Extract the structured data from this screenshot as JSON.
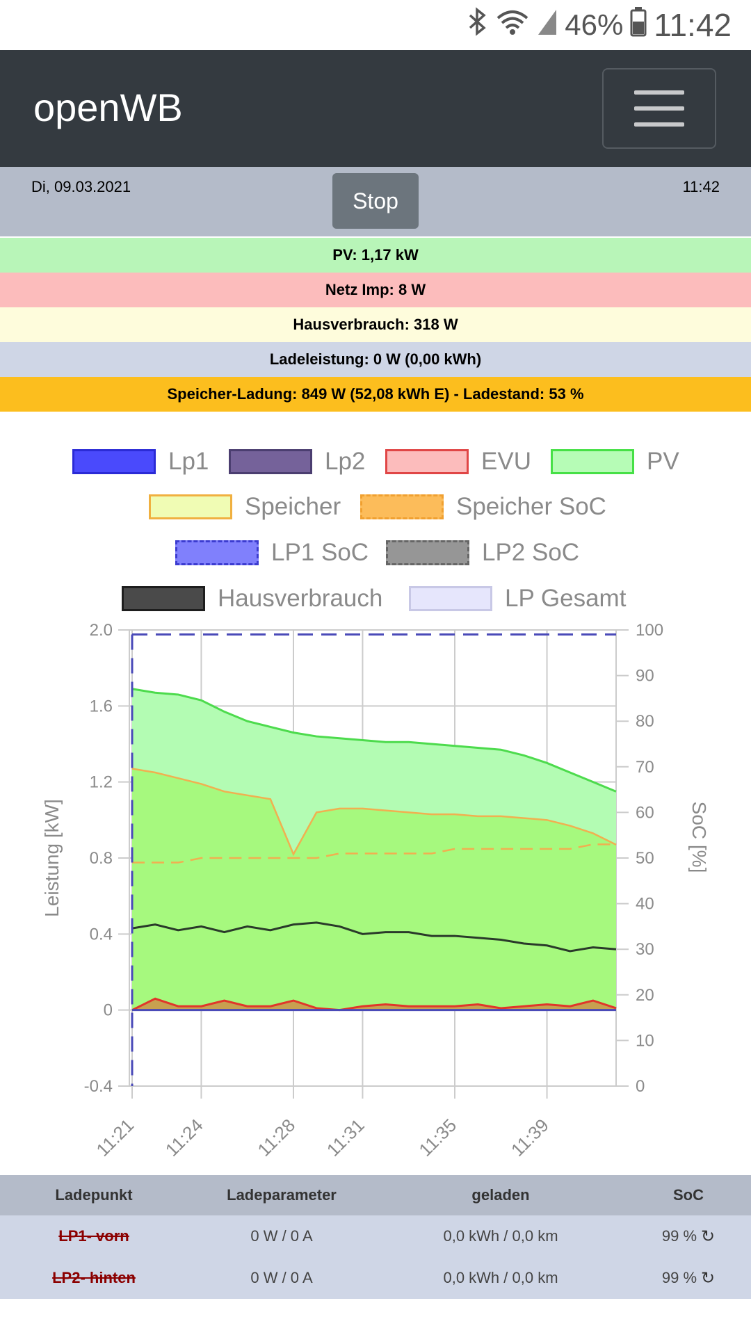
{
  "statusbar": {
    "bluetooth_icon": "bluetooth-icon",
    "wifi_icon": "wifi-icon",
    "signal_icon": "cell-signal-icon",
    "battery_pct": "46%",
    "battery_icon": "battery-icon",
    "clock": "11:42"
  },
  "navbar": {
    "brand": "openWB",
    "menu_icon": "hamburger-menu-icon"
  },
  "datebar": {
    "date": "Di, 09.03.2021",
    "time": "11:42",
    "stop_label": "Stop"
  },
  "info": {
    "pv": "PV: 1,17 kW",
    "netz": "Netz Imp: 8 W",
    "haus": "Hausverbrauch: 318 W",
    "lade": "Ladeleistung: 0 W (0,00 kWh)",
    "speicher": "Speicher-Ladung: 849 W (52,08 kWh E) - Ladestand: 53 %"
  },
  "colors": {
    "pv_row": "#b8f5b8",
    "netz_row": "#fcbcbc",
    "haus_row": "#fefcdc",
    "lade_row": "#cfd6e6",
    "speicher_row": "#fcbe1e",
    "navbar": "#343a40",
    "pv_line": "#4ddb4d",
    "pv_fill": "#b3fcb3",
    "speicher_line": "#f0b050",
    "speicher_fill": "#a6f97e",
    "evu_line": "#e0362a",
    "haus_line": "#2a3a2a",
    "soc_line": "#4a4ab8"
  },
  "legend": [
    {
      "label": "Lp1",
      "fill": "#4a4afc",
      "border": "#2b2bd6",
      "dashed": false
    },
    {
      "label": "Lp2",
      "fill": "#75629a",
      "border": "#4b3e70",
      "dashed": false
    },
    {
      "label": "EVU",
      "fill": "#fcbcbc",
      "border": "#e04646",
      "dashed": false
    },
    {
      "label": "PV",
      "fill": "#b6fcb6",
      "border": "#46e046",
      "dashed": false
    },
    {
      "label": "Speicher",
      "fill": "#f0fcb4",
      "border": "#f0b040",
      "dashed": false
    },
    {
      "label": "Speicher SoC",
      "fill": "#fcbc5a",
      "border": "#f0a030",
      "dashed": true
    },
    {
      "label": "LP1 SoC",
      "fill": "#8080fc",
      "border": "#3c3cd0",
      "dashed": true
    },
    {
      "label": "LP2 SoC",
      "fill": "#969696",
      "border": "#666666",
      "dashed": true
    },
    {
      "label": "Hausverbrauch",
      "fill": "#4a4a4a",
      "border": "#1e1e1e",
      "dashed": false
    },
    {
      "label": "LP Gesamt",
      "fill": "#e6e6fc",
      "border": "#c8c8e6",
      "dashed": false
    }
  ],
  "chart_data": {
    "type": "line",
    "ylabel": "Leistung [kW]",
    "y2label": "SoC [%]",
    "ylim": [
      -0.4,
      2.0
    ],
    "yticks": [
      "2.0",
      "1.6",
      "1.2",
      "0.8",
      "0.4",
      "0",
      "-0.4"
    ],
    "y2lim": [
      0,
      100
    ],
    "y2ticks": [
      "100",
      "90",
      "80",
      "70",
      "60",
      "50",
      "40",
      "30",
      "20",
      "10",
      "0"
    ],
    "xticks": [
      "11:21",
      "11:24",
      "11:28",
      "11:31",
      "11:35",
      "11:39"
    ],
    "grid": true,
    "x_minutes": [
      0,
      1,
      2,
      3,
      4,
      5,
      6,
      7,
      8,
      9,
      10,
      11,
      12,
      13,
      14,
      15,
      16,
      17,
      18,
      19,
      20,
      21
    ],
    "series": [
      {
        "name": "PV",
        "values": [
          1.69,
          1.67,
          1.66,
          1.63,
          1.57,
          1.52,
          1.49,
          1.46,
          1.44,
          1.43,
          1.42,
          1.41,
          1.41,
          1.4,
          1.39,
          1.38,
          1.37,
          1.34,
          1.3,
          1.25,
          1.2,
          1.15
        ]
      },
      {
        "name": "Speicher",
        "values": [
          1.27,
          1.25,
          1.22,
          1.19,
          1.15,
          1.13,
          1.11,
          0.82,
          1.04,
          1.06,
          1.06,
          1.05,
          1.04,
          1.03,
          1.03,
          1.02,
          1.02,
          1.01,
          1.0,
          0.97,
          0.93,
          0.87
        ]
      },
      {
        "name": "Hausverbrauch",
        "values": [
          0.43,
          0.45,
          0.42,
          0.44,
          0.41,
          0.44,
          0.42,
          0.45,
          0.46,
          0.44,
          0.4,
          0.41,
          0.41,
          0.39,
          0.39,
          0.38,
          0.37,
          0.35,
          0.34,
          0.31,
          0.33,
          0.32
        ]
      },
      {
        "name": "EVU",
        "values": [
          0.0,
          0.06,
          0.02,
          0.02,
          0.05,
          0.02,
          0.02,
          0.05,
          0.01,
          0.0,
          0.02,
          0.03,
          0.02,
          0.02,
          0.02,
          0.03,
          0.01,
          0.02,
          0.03,
          0.02,
          0.05,
          0.01
        ]
      },
      {
        "name": "Speicher SoC",
        "values": [
          49,
          49,
          49,
          50,
          50,
          50,
          50,
          50,
          50,
          51,
          51,
          51,
          51,
          51,
          52,
          52,
          52,
          52,
          52,
          52,
          53,
          53
        ]
      },
      {
        "name": "LP1 SoC",
        "values": [
          99,
          99,
          99,
          99,
          99,
          99,
          99,
          99,
          99,
          99,
          99,
          99,
          99,
          99,
          99,
          99,
          99,
          99,
          99,
          99,
          99,
          99
        ]
      },
      {
        "name": "Lp1",
        "values": [
          0,
          0,
          0,
          0,
          0,
          0,
          0,
          0,
          0,
          0,
          0,
          0,
          0,
          0,
          0,
          0,
          0,
          0,
          0,
          0,
          0,
          0
        ]
      }
    ]
  },
  "table": {
    "headers": [
      "Ladepunkt",
      "Ladeparameter",
      "geladen",
      "SoC"
    ],
    "rows": [
      {
        "name": "LP1- vorn",
        "param": "0 W / 0 A",
        "geladen": "0,0 kWh / 0,0 km",
        "soc": "99 %"
      },
      {
        "name": "LP2- hinten",
        "param": "0 W / 0 A",
        "geladen": "0,0 kWh / 0,0 km",
        "soc": "99 %"
      }
    ],
    "refresh_icon": "refresh-icon"
  }
}
